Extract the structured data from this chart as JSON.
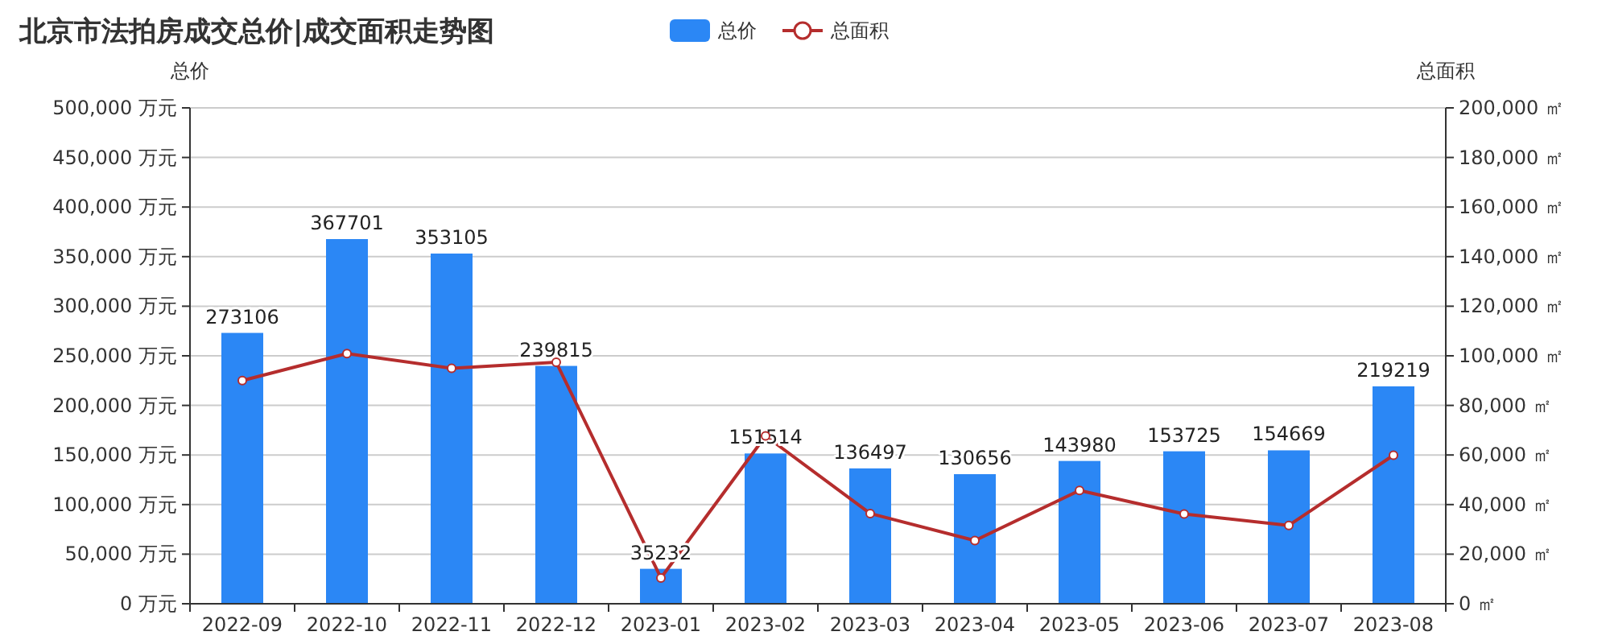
{
  "chart_data": {
    "type": "bar",
    "title": "北京市法拍房成交总价|成交面积走势图",
    "ylabel": "总价",
    "y2label": "总面积",
    "categories": [
      "2022-09",
      "2022-10",
      "2022-11",
      "2022-12",
      "2023-01",
      "2023-02",
      "2023-03",
      "2023-04",
      "2023-05",
      "2023-06",
      "2023-07",
      "2023-08"
    ],
    "series": [
      {
        "name": "总价",
        "color": "#2b87f5",
        "values": [
          273106,
          367701,
          353105,
          239815,
          35232,
          151514,
          136497,
          130656,
          143980,
          153725,
          154669,
          219219
        ],
        "value_labels": [
          "273106",
          "367701",
          "353105",
          "239815",
          "35232",
          "151514",
          "136497",
          "130656",
          "143980",
          "153725",
          "154669",
          "219219"
        ]
      },
      {
        "name": "总面积",
        "type": "line",
        "axis": "y2",
        "color": "#b52d2d",
        "marker": "circle",
        "values": [
          90000,
          100900,
          95000,
          97400,
          10400,
          67700,
          36400,
          25500,
          45700,
          36200,
          31600,
          59900
        ]
      }
    ],
    "ylim": [
      0,
      500000
    ],
    "yticks": [
      {
        "value": 0,
        "label": "0 万元"
      },
      {
        "value": 50000,
        "label": "50,000 万元"
      },
      {
        "value": 100000,
        "label": "100,000 万元"
      },
      {
        "value": 150000,
        "label": "150,000 万元"
      },
      {
        "value": 200000,
        "label": "200,000 万元"
      },
      {
        "value": 250000,
        "label": "250,000 万元"
      },
      {
        "value": 300000,
        "label": "300,000 万元"
      },
      {
        "value": 350000,
        "label": "350,000 万元"
      },
      {
        "value": 400000,
        "label": "400,000 万元"
      },
      {
        "value": 450000,
        "label": "450,000 万元"
      },
      {
        "value": 500000,
        "label": "500,000 万元"
      }
    ],
    "y2lim": [
      0,
      200000
    ],
    "y2ticks": [
      {
        "value": 0,
        "label": "0 ㎡"
      },
      {
        "value": 20000,
        "label": "20,000 ㎡"
      },
      {
        "value": 40000,
        "label": "40,000 ㎡"
      },
      {
        "value": 60000,
        "label": "60,000 ㎡"
      },
      {
        "value": 80000,
        "label": "80,000 ㎡"
      },
      {
        "value": 100000,
        "label": "100,000 ㎡"
      },
      {
        "value": 120000,
        "label": "120,000 ㎡"
      },
      {
        "value": 140000,
        "label": "140,000 ㎡"
      },
      {
        "value": 160000,
        "label": "160,000 ㎡"
      },
      {
        "value": 180000,
        "label": "180,000 ㎡"
      },
      {
        "value": 200000,
        "label": "200,000 ㎡"
      }
    ],
    "grid": "y",
    "legend": "top"
  }
}
